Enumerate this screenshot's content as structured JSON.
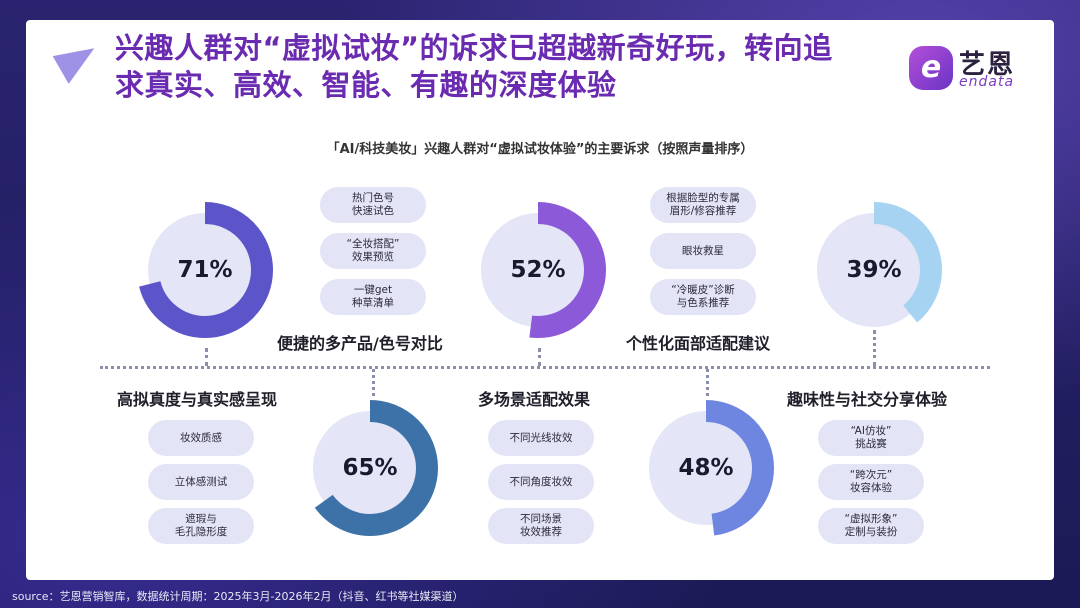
{
  "header": {
    "title_line1": "兴趣人群对“虚拟试妆”的诉求已超越新奇好玩，转向追",
    "title_line2": "求真实、高效、智能、有趣的深度体验",
    "logo_cn": "艺恩",
    "logo_en": "endata",
    "logo_mark": "e"
  },
  "chart_data": {
    "type": "donut",
    "title": "「AI/科技美妆」兴趣人群对“虚拟试妆体验”的主要诉求（按照声量排序）",
    "items": [
      {
        "name": "便捷的多产品/色号对比",
        "value": 71,
        "label": "71%",
        "color": "#5b55c9",
        "track": "#e4e5f7",
        "tags": [
          "热门色号\n快速试色",
          "“全妆搭配”\n效果预览",
          "一键get\n种草清单"
        ]
      },
      {
        "name": "高拟真度与真实感呈现",
        "value": 65,
        "label": "65%",
        "color": "#3d72a8",
        "track": "#e4e5f7",
        "tags": [
          "妆效质感",
          "立体感测试",
          "遮瑕与\n毛孔隐形度"
        ]
      },
      {
        "name": "个性化面部适配建议",
        "value": 52,
        "label": "52%",
        "color": "#8c5ad8",
        "track": "#e4e5f7",
        "tags": [
          "根据脸型的专属\n眉形/修容推荐",
          "眼妆救星",
          "“冷暖皮”诊断\n与色系推荐"
        ]
      },
      {
        "name": "多场景适配效果",
        "value": 48,
        "label": "48%",
        "color": "#6f86e0",
        "track": "#e4e5f7",
        "tags": [
          "不同光线妆效",
          "不同角度妆效",
          "不同场景\n妆效推荐"
        ]
      },
      {
        "name": "趣味性与社交分享体验",
        "value": 39,
        "label": "39%",
        "color": "#a7d3f2",
        "track": "#e4e5f7",
        "tags": [
          "“AI仿妆”\n挑战赛",
          "“跨次元”\n妆容体验",
          "“虚拟形象”\n定制与装扮"
        ]
      }
    ]
  },
  "footer": {
    "source": "source：艺恩营销智库，数据统计周期：2025年3月-2026年2月（抖音、红书等社媒渠道）"
  }
}
